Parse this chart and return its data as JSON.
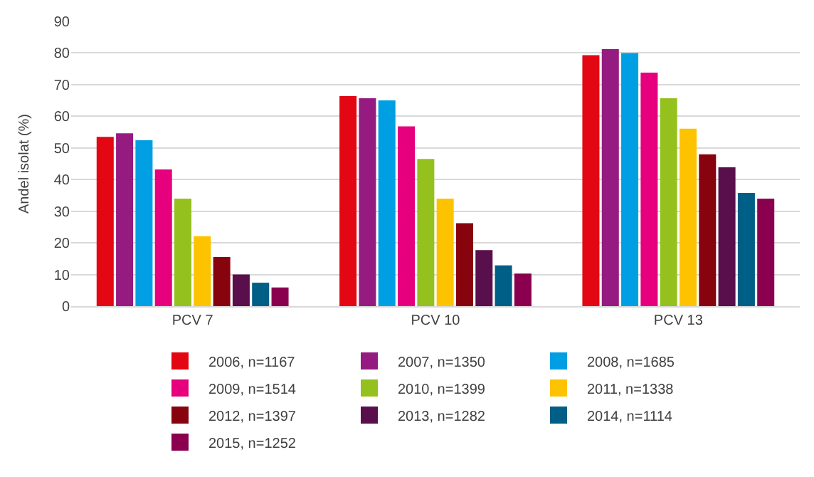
{
  "chart_data": {
    "type": "bar",
    "ylabel": "Andel isolat (%)",
    "categories": [
      "PCV 7",
      "PCV 10",
      "PCV 13"
    ],
    "ylim": [
      0,
      90
    ],
    "yticks": [
      0,
      10,
      20,
      30,
      40,
      50,
      60,
      70,
      80,
      90
    ],
    "grid": "y",
    "legend": "bottom",
    "series": [
      {
        "name": "2006, n=1167",
        "color": "#e30613",
        "values": [
          53.5,
          66.4,
          79.3
        ]
      },
      {
        "name": "2007, n=1350",
        "color": "#951b81",
        "values": [
          54.6,
          65.7,
          81.2
        ]
      },
      {
        "name": "2008, n=1685",
        "color": "#009fe3",
        "values": [
          52.4,
          65,
          80
        ]
      },
      {
        "name": "2009, n=1514",
        "color": "#e6007e",
        "values": [
          43.2,
          56.8,
          73.8
        ]
      },
      {
        "name": "2010, n=1399",
        "color": "#95c11f",
        "values": [
          34,
          46.5,
          65.7
        ]
      },
      {
        "name": "2011, n=1338",
        "color": "#fdc300",
        "values": [
          22.1,
          34,
          56.1
        ]
      },
      {
        "name": "2012, n=1397",
        "color": "#87040f",
        "values": [
          15.5,
          26.2,
          48
        ]
      },
      {
        "name": "2013, n=1282",
        "color": "#5a0f4d",
        "values": [
          10,
          17.7,
          43.9
        ]
      },
      {
        "name": "2014, n=1114",
        "color": "#005f87",
        "values": [
          7.4,
          12.9,
          35.8
        ]
      },
      {
        "name": "2015, n=1252",
        "color": "#8a004f",
        "values": [
          5.9,
          10.3,
          34
        ]
      }
    ]
  }
}
